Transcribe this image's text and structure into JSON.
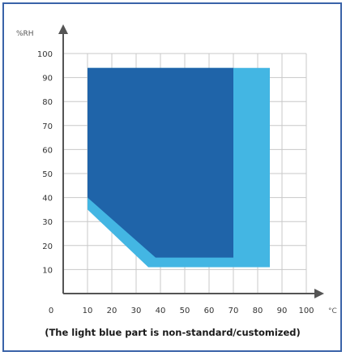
{
  "chart_data": {
    "type": "area",
    "ylabel": "%RH",
    "xlabel": "°C",
    "xlim": [
      0,
      100
    ],
    "ylim": [
      0,
      100
    ],
    "x_ticks": [
      0,
      10,
      20,
      30,
      40,
      50,
      60,
      70,
      80,
      90,
      100
    ],
    "y_ticks": [
      10,
      20,
      30,
      40,
      50,
      60,
      70,
      80,
      90,
      100
    ],
    "grid": true,
    "caption": "(The light blue part is non-standard/customized)",
    "regions": [
      {
        "fill": "#43b6e3",
        "polygon": [
          [
            10,
            94
          ],
          [
            85,
            94
          ],
          [
            85,
            11
          ],
          [
            35,
            11
          ],
          [
            10,
            35
          ]
        ]
      },
      {
        "fill": "#1f64a9",
        "polygon": [
          [
            10,
            94
          ],
          [
            70,
            94
          ],
          [
            70,
            15
          ],
          [
            38,
            15
          ],
          [
            10,
            40
          ]
        ]
      }
    ],
    "colors": {
      "axis": "#555555",
      "grid": "#c8c8c8",
      "frame": "#3a63a8"
    }
  }
}
